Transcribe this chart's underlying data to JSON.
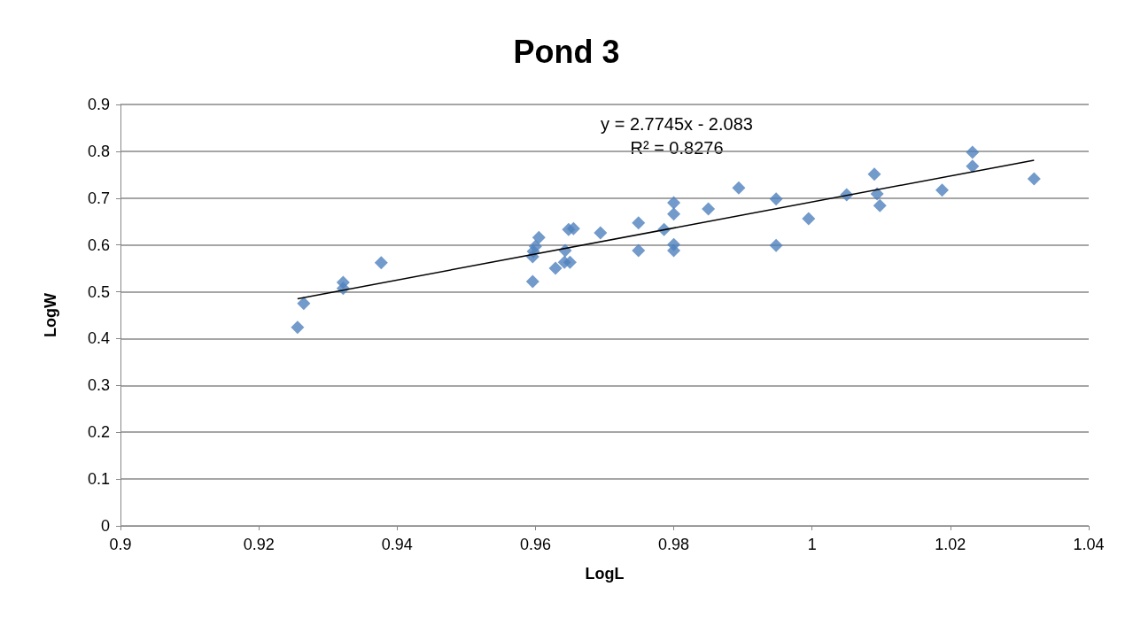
{
  "chart_data": {
    "type": "scatter",
    "title": "Pond 3",
    "xlabel": "LogL",
    "ylabel": "LogW",
    "annotations": [
      "y = 2.7745x - 2.083",
      "R² = 0.8276"
    ],
    "series": [
      {
        "color": "#4f81bd",
        "marker": "diamond",
        "x": [
          0.9256,
          0.9265,
          0.9322,
          0.9322,
          0.9377,
          0.9596,
          0.9596,
          0.9597,
          0.96,
          0.9605,
          0.9629,
          0.9642,
          0.9643,
          0.965,
          0.9648,
          0.9655,
          0.9694,
          0.9749,
          0.9749,
          0.9786,
          0.98,
          0.98,
          0.98,
          0.98,
          0.985,
          0.9894,
          0.9948,
          0.9948,
          0.9995,
          1.005,
          1.009,
          1.0094,
          1.0098,
          1.0188,
          1.0232,
          1.0232,
          1.0321
        ],
        "values": [
          0.424,
          0.475,
          0.52,
          0.507,
          0.562,
          0.522,
          0.575,
          0.586,
          0.597,
          0.616,
          0.55,
          0.563,
          0.588,
          0.563,
          0.633,
          0.635,
          0.626,
          0.647,
          0.588,
          0.633,
          0.69,
          0.666,
          0.601,
          0.588,
          0.677,
          0.722,
          0.698,
          0.599,
          0.656,
          0.707,
          0.751,
          0.709,
          0.684,
          0.717,
          0.798,
          0.768,
          0.741
        ]
      },
      {
        "type": "line",
        "color": "#000000",
        "marker": "none",
        "line_style": "solid",
        "x": [
          0.9256,
          1.0321
        ],
        "values": [
          0.485,
          0.781
        ]
      }
    ],
    "xlim": [
      0.9,
      1.04
    ],
    "xticks": [
      0.9,
      0.92,
      0.94,
      0.96,
      0.98,
      1,
      1.02,
      1.04
    ],
    "ylim": [
      0,
      0.9
    ],
    "yticks": [
      0,
      0.1,
      0.2,
      0.3,
      0.4,
      0.5,
      0.6,
      0.7,
      0.8,
      0.9
    ],
    "grid": "y"
  }
}
